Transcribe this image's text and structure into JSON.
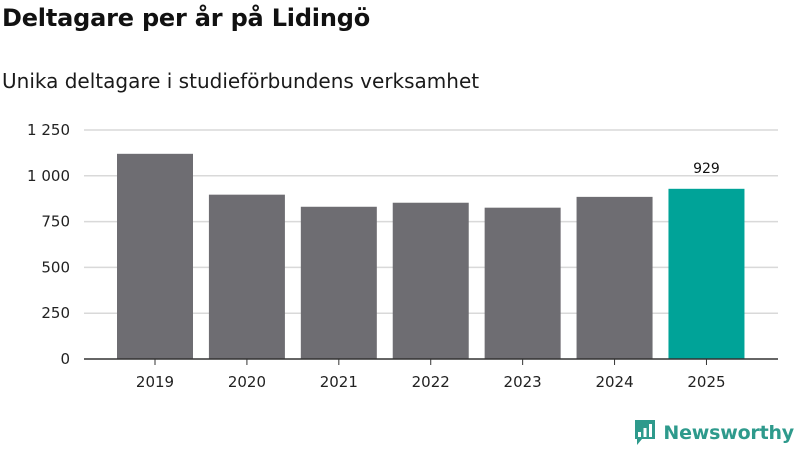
{
  "title": "Deltagare per år på Lidingö",
  "subtitle": "Unika deltagare i studieförbundens verksamhet",
  "brand": {
    "name": "Newsworthy",
    "color": "#2e9a8c"
  },
  "colors": {
    "bar": "#6e6d72",
    "highlight": "#00a398",
    "grid": "#d9d9d9",
    "axis": "#333333"
  },
  "chart_data": {
    "type": "bar",
    "title": "Deltagare per år på Lidingö",
    "subtitle": "Unika deltagare i studieförbundens verksamhet",
    "categories": [
      "2019",
      "2020",
      "2021",
      "2022",
      "2023",
      "2024",
      "2025"
    ],
    "values": [
      1120,
      897,
      831,
      853,
      826,
      885,
      929
    ],
    "highlight_index": 6,
    "data_labels": [
      {
        "index": 6,
        "text": "929"
      }
    ],
    "yticks": [
      0,
      250,
      500,
      750,
      1000,
      1250
    ],
    "ytick_labels": [
      "0",
      "250",
      "500",
      "750",
      "1 000",
      "1 250"
    ],
    "ylim": [
      0,
      1250
    ],
    "xlabel": "",
    "ylabel": "",
    "grid": true,
    "legend": "none"
  }
}
